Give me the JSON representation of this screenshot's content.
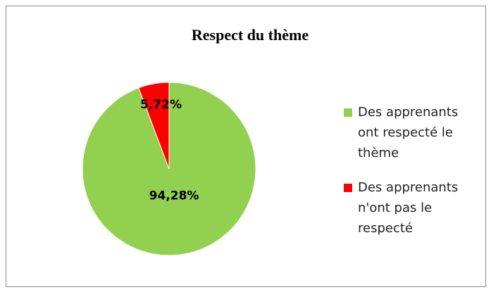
{
  "chart_data": {
    "type": "pie",
    "title": "Respect du thème",
    "categories": [
      "Des apprenants ont respecté le thème",
      "Des apprenants n'ont pas le respecté"
    ],
    "values": [
      94.28,
      5.72
    ],
    "value_labels": [
      "94,28%",
      "5,72%"
    ],
    "colors": [
      "#92d050",
      "#ff0000"
    ]
  }
}
